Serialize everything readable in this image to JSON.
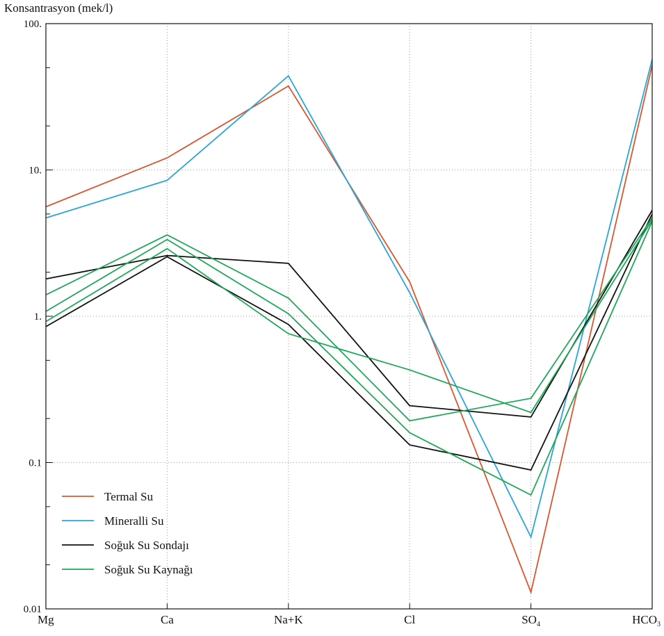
{
  "chart_data": {
    "type": "line",
    "ylabel": "Konsantrasyon (mek/l)",
    "yscale": "log",
    "ylim": [
      0.01,
      100
    ],
    "ytick_labels": [
      "100.",
      "10.",
      "1.",
      "0.1",
      "0.01"
    ],
    "categories": [
      "Mg",
      "Ca",
      "Na+K",
      "Cl",
      "SO4",
      "HCO3"
    ],
    "grid": true,
    "legend_position": "bottom-left",
    "legend": [
      {
        "label": "Termal Su",
        "color": "#d9562f"
      },
      {
        "label": "Mineralli Su",
        "color": "#2aa5d6"
      },
      {
        "label": "Soğuk Su Sondajı",
        "color": "#111111"
      },
      {
        "label": "Soğuk Su Kaynağı",
        "color": "#1fa85a"
      }
    ],
    "series": [
      {
        "group": "Termal Su",
        "color": "#d9562f",
        "values": [
          5.6,
          12.1,
          37.5,
          1.72,
          0.013,
          52
        ]
      },
      {
        "group": "Mineralli Su",
        "color": "#2aa5d6",
        "values": [
          4.7,
          8.5,
          44,
          1.45,
          0.031,
          57
        ]
      },
      {
        "group": "Soğuk Su Sondajı",
        "color": "#111111",
        "values": [
          1.8,
          2.6,
          2.3,
          0.245,
          0.205,
          5.3
        ]
      },
      {
        "group": "Soğuk Su Sondajı",
        "color": "#111111",
        "values": [
          0.85,
          2.55,
          0.88,
          0.132,
          0.089,
          5.0
        ]
      },
      {
        "group": "Soğuk Su Kaynağı",
        "color": "#1fa85a",
        "values": [
          1.4,
          3.6,
          1.33,
          0.193,
          0.275,
          4.7
        ]
      },
      {
        "group": "Soğuk Su Kaynağı",
        "color": "#1fa85a",
        "values": [
          1.08,
          3.35,
          1.04,
          0.16,
          0.06,
          4.45
        ]
      },
      {
        "group": "Soğuk Su Kaynağı",
        "color": "#1fa85a",
        "values": [
          0.92,
          2.9,
          0.76,
          0.43,
          0.22,
          4.55
        ]
      }
    ]
  }
}
